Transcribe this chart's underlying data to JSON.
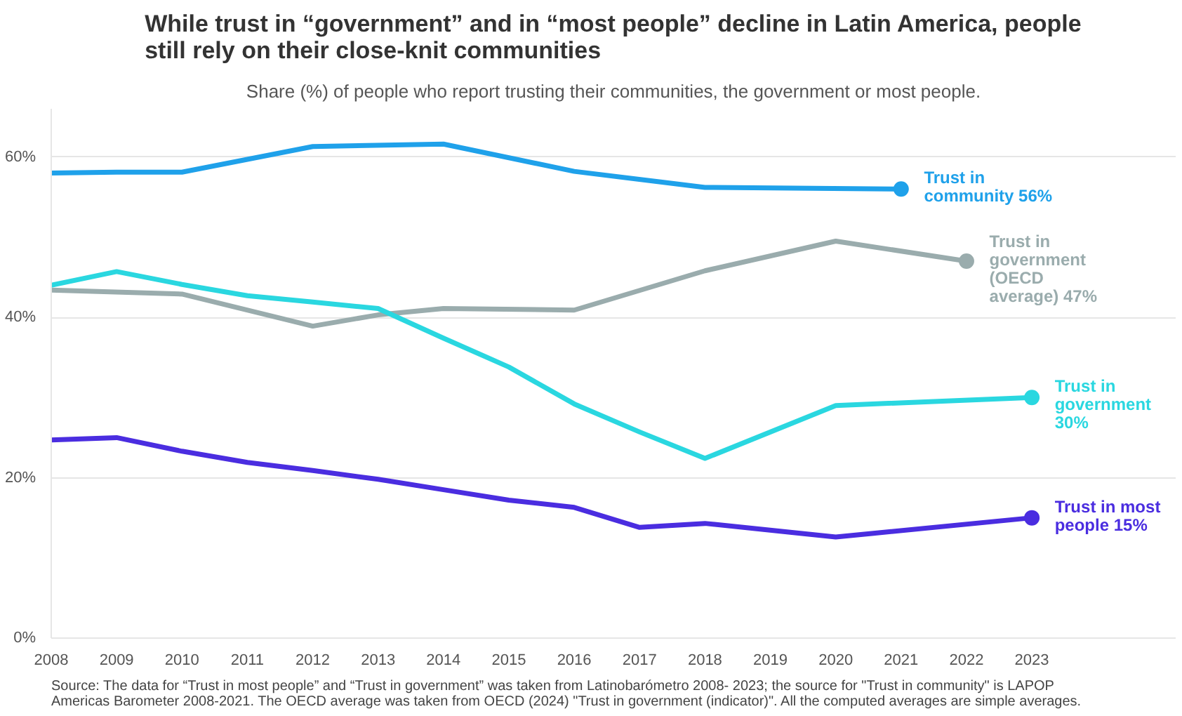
{
  "chart_data": {
    "type": "line",
    "title": "While trust in “government” and in “most people” decline in Latin America, people still rely on their close-knit communities",
    "subtitle": "Share (%) of people who report trusting their communities, the government or most people.",
    "xlim": [
      2008,
      2025.2
    ],
    "xticks": [
      2008,
      2009,
      2010,
      2011,
      2012,
      2013,
      2014,
      2015,
      2016,
      2017,
      2018,
      2019,
      2020,
      2021,
      2022,
      2023
    ],
    "ylim": [
      0,
      66
    ],
    "yticks": [
      {
        "value": 0,
        "label": "0%"
      },
      {
        "value": 20,
        "label": "20%"
      },
      {
        "value": 40,
        "label": "40%"
      },
      {
        "value": 60,
        "label": "60%"
      }
    ],
    "grid": "y",
    "series": [
      {
        "name": "Trust in community",
        "color": "#1fa1ea",
        "x": [
          2008,
          2009,
          2010,
          2012,
          2014,
          2016,
          2018,
          2021
        ],
        "values": [
          58.0,
          58.1,
          58.1,
          61.3,
          61.6,
          58.2,
          56.2,
          56
        ],
        "value_labels": [
          null,
          null,
          null,
          null,
          null,
          null,
          null,
          "56%"
        ]
      },
      {
        "name": "Trust in government (OECD average)",
        "color": "#9aacad",
        "x": [
          2008,
          2010,
          2012,
          2013,
          2014,
          2016,
          2018,
          2020,
          2022
        ],
        "values": [
          43.4,
          42.9,
          38.9,
          40.3,
          41.1,
          40.9,
          45.8,
          49.5,
          47
        ],
        "value_labels": [
          null,
          null,
          null,
          null,
          null,
          null,
          null,
          null,
          "47%"
        ]
      },
      {
        "name": "Trust in government",
        "color": "#2ad7e0",
        "x": [
          2008,
          2009,
          2010,
          2011,
          2012,
          2013,
          2014,
          2015,
          2016,
          2017,
          2018,
          2020,
          2023
        ],
        "values": [
          44.0,
          45.7,
          44.1,
          42.7,
          41.9,
          41.1,
          37.4,
          33.8,
          29.2,
          25.7,
          22.4,
          29.0,
          30
        ],
        "value_labels": [
          null,
          null,
          null,
          null,
          null,
          null,
          null,
          null,
          null,
          null,
          null,
          null,
          "30%"
        ]
      },
      {
        "name": "Trust in most people",
        "color": "#4a2de0",
        "x": [
          2008,
          2009,
          2010,
          2011,
          2012,
          2013,
          2014,
          2015,
          2016,
          2017,
          2018,
          2020,
          2023
        ],
        "values": [
          24.7,
          25.0,
          23.3,
          21.9,
          20.9,
          19.8,
          18.5,
          17.2,
          16.3,
          13.8,
          14.3,
          12.6,
          15
        ],
        "value_labels": [
          null,
          null,
          null,
          null,
          null,
          null,
          null,
          null,
          null,
          null,
          null,
          null,
          "15%"
        ]
      }
    ],
    "annotations": [
      "Source: The data for “Trust in most people” and “Trust in government” was taken from Latinobarómetro 2008- 2023; the source for \"Trust in community\" is LAPOP Americas Barometer 2008-2021. The OECD average was taken from OECD (2024) \"Trust in government (indicator)\". All the computed averages are simple averages."
    ]
  }
}
